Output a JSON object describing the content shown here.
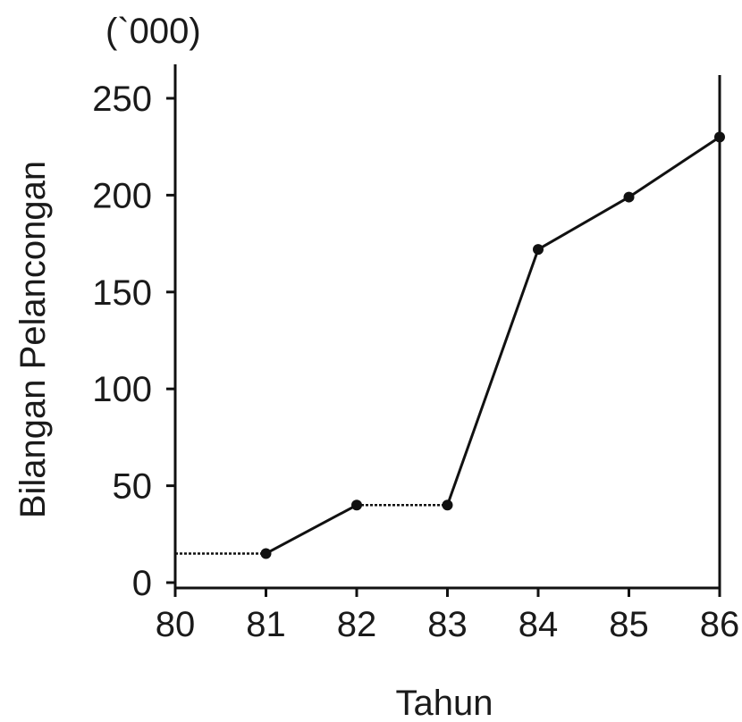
{
  "chart_data": {
    "type": "line",
    "unit_label": "(`000)",
    "xlabel": "Tahun",
    "ylabel": "Bilangan Pelancongan",
    "x": [
      "80",
      "81",
      "82",
      "83",
      "84",
      "85",
      "86"
    ],
    "x_ticks": [
      "80",
      "81",
      "82",
      "83",
      "84",
      "85",
      "86"
    ],
    "y_ticks": [
      "0",
      "50",
      "100",
      "150",
      "200",
      "250"
    ],
    "ylim": [
      0,
      250
    ],
    "series": [
      {
        "values": [
          15,
          15,
          40,
          40,
          172,
          199,
          230
        ],
        "markers": [
          false,
          true,
          true,
          true,
          true,
          true,
          true
        ]
      }
    ],
    "grid": false,
    "color": "#111111"
  }
}
